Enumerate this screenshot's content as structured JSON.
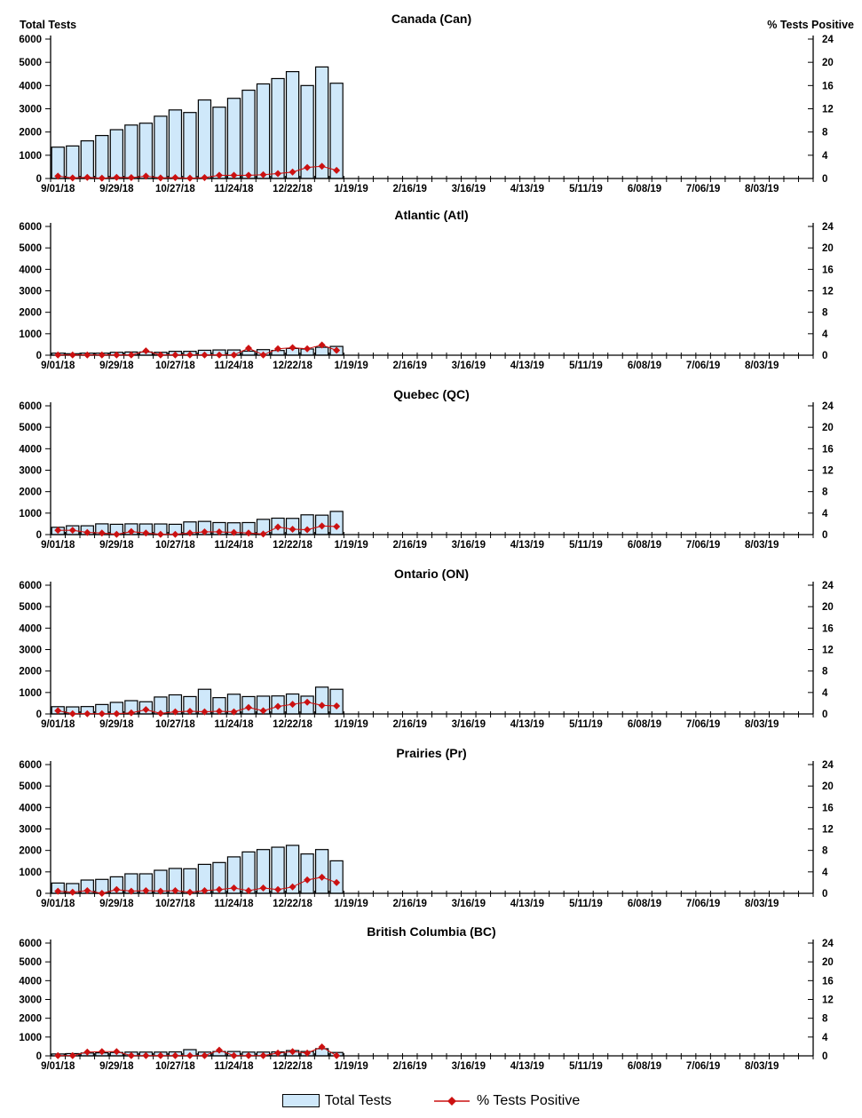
{
  "colors": {
    "bar_fill": "#cfe8fa",
    "bar_stroke": "#000000",
    "line": "#cc1111",
    "marker": "#cc1111",
    "axis": "#000000",
    "text": "#000000",
    "background": "#ffffff"
  },
  "axes": {
    "left_title": "Total Tests",
    "right_title": "% Tests Positive",
    "left_min": 0,
    "left_max": 6000,
    "left_tick_step": 1000,
    "right_min": 0,
    "right_max": 24,
    "right_tick_step": 4,
    "x_tick_labels": [
      "9/01/18",
      "9/29/18",
      "10/27/18",
      "11/24/18",
      "12/22/18",
      "1/19/19",
      "2/16/19",
      "3/16/19",
      "4/13/19",
      "5/11/19",
      "6/08/19",
      "7/06/19",
      "8/03/19"
    ],
    "weeks_per_labeled_tick": 4,
    "total_weeks": 52,
    "bars_present_weeks": 20,
    "grid": false
  },
  "legend": {
    "bar_label": "Total Tests",
    "line_label": "% Tests Positive"
  },
  "chart_data": [
    {
      "type": "bar+line",
      "title": "Canada (Can)",
      "slug": "canada-can",
      "series": [
        {
          "name": "Total Tests",
          "axis": "left",
          "values": [
            1350,
            1400,
            1620,
            1850,
            2100,
            2300,
            2380,
            2680,
            2950,
            2840,
            3380,
            3070,
            3450,
            3800,
            4070,
            4300,
            4600,
            4000,
            4800,
            4100
          ]
        },
        {
          "name": "% Tests Positive",
          "axis": "right",
          "values": [
            0.4,
            0.1,
            0.2,
            0.05,
            0.2,
            0.15,
            0.4,
            0.1,
            0.15,
            0.05,
            0.15,
            0.55,
            0.55,
            0.55,
            0.65,
            0.85,
            1.1,
            1.9,
            2.1,
            1.4
          ]
        }
      ]
    },
    {
      "type": "bar+line",
      "title": "Atlantic (Atl)",
      "slug": "atlantic-atl",
      "series": [
        {
          "name": "Total Tests",
          "axis": "left",
          "values": [
            95,
            70,
            95,
            95,
            135,
            150,
            150,
            135,
            180,
            180,
            230,
            245,
            245,
            190,
            260,
            220,
            315,
            290,
            370,
            410
          ]
        },
        {
          "name": "% Tests Positive",
          "axis": "right",
          "values": [
            0.05,
            0.05,
            0.05,
            0.05,
            0.05,
            0.05,
            0.8,
            0.05,
            0.05,
            0.05,
            0.05,
            0.05,
            0.05,
            1.3,
            0.05,
            1.2,
            1.4,
            1.2,
            1.9,
            0.9
          ]
        }
      ]
    },
    {
      "type": "bar+line",
      "title": "Quebec (QC)",
      "slug": "quebec-qc",
      "series": [
        {
          "name": "Total Tests",
          "axis": "left",
          "values": [
            340,
            410,
            410,
            500,
            480,
            500,
            495,
            495,
            480,
            590,
            615,
            560,
            550,
            560,
            710,
            765,
            755,
            920,
            905,
            1080
          ]
        },
        {
          "name": "% Tests Positive",
          "axis": "right",
          "values": [
            0.8,
            0.8,
            0.4,
            0.3,
            0.05,
            0.55,
            0.3,
            0.05,
            0.05,
            0.3,
            0.5,
            0.5,
            0.4,
            0.3,
            0.1,
            1.4,
            1.0,
            0.9,
            1.6,
            1.5
          ]
        }
      ]
    },
    {
      "type": "bar+line",
      "title": "Ontario (ON)",
      "slug": "ontario-on",
      "series": [
        {
          "name": "Total Tests",
          "axis": "left",
          "values": [
            340,
            330,
            345,
            440,
            540,
            620,
            570,
            790,
            890,
            810,
            1150,
            760,
            920,
            810,
            830,
            840,
            930,
            830,
            1250,
            1150
          ]
        },
        {
          "name": "% Tests Positive",
          "axis": "right",
          "values": [
            0.6,
            0.05,
            0.05,
            0.05,
            0.05,
            0.2,
            0.8,
            0.1,
            0.4,
            0.5,
            0.4,
            0.5,
            0.4,
            1.2,
            0.6,
            1.4,
            1.8,
            2.2,
            1.6,
            1.5
          ]
        }
      ]
    },
    {
      "type": "bar+line",
      "title": "Prairies (Pr)",
      "slug": "prairies-pr",
      "series": [
        {
          "name": "Total Tests",
          "axis": "left",
          "values": [
            480,
            455,
            620,
            650,
            770,
            910,
            910,
            1075,
            1160,
            1145,
            1350,
            1435,
            1700,
            1930,
            2040,
            2150,
            2235,
            1835,
            2040,
            1515
          ]
        },
        {
          "name": "% Tests Positive",
          "axis": "right",
          "values": [
            0.4,
            0.2,
            0.5,
            0.0,
            0.7,
            0.4,
            0.5,
            0.4,
            0.5,
            0.2,
            0.5,
            0.7,
            1.0,
            0.5,
            1.0,
            0.7,
            1.2,
            2.5,
            3.0,
            2.0
          ]
        }
      ]
    },
    {
      "type": "bar+line",
      "title": "British Columbia (BC)",
      "slug": "british-columbia-bc",
      "series": [
        {
          "name": "Total Tests",
          "axis": "left",
          "values": [
            100,
            120,
            150,
            160,
            180,
            200,
            200,
            200,
            210,
            330,
            200,
            230,
            230,
            200,
            200,
            210,
            280,
            230,
            380,
            180
          ]
        },
        {
          "name": "% Tests Positive",
          "axis": "right",
          "values": [
            0.05,
            0.05,
            0.8,
            0.9,
            0.9,
            0.05,
            0.05,
            0.05,
            0.05,
            0.05,
            0.05,
            1.2,
            0.05,
            0.05,
            0.05,
            0.6,
            0.9,
            0.6,
            1.9,
            0.05
          ]
        }
      ]
    }
  ]
}
